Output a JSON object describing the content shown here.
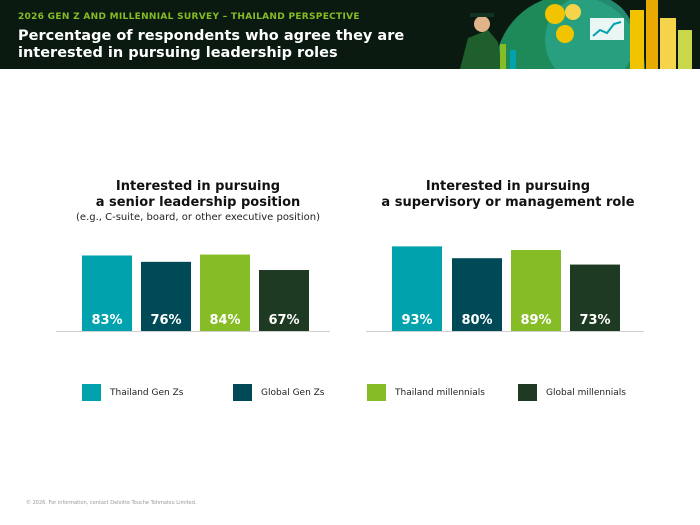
{
  "header": {
    "kicker": "2026 GEN Z AND MILLENNIAL SURVEY – THAILAND PERSPECTIVE",
    "title": "Percentage of respondents who agree they are interested in pursuing leadership roles"
  },
  "colors": {
    "thailand_gen_z": "#00a3ad",
    "global_gen_z": "#004a57",
    "thailand_millennials": "#86bc25",
    "global_millennials": "#1f3a22"
  },
  "legend": [
    {
      "label": "Thailand Gen Zs",
      "color": "#00a3ad"
    },
    {
      "label": "Global Gen Zs",
      "color": "#004a57"
    },
    {
      "label": "Thailand millennials",
      "color": "#86bc25"
    },
    {
      "label": "Global millennials",
      "color": "#1f3a22"
    }
  ],
  "chart_data": [
    {
      "type": "bar",
      "title": "Interested in pursuing a senior leadership position",
      "title_lines": [
        "Interested in pursuing",
        "a senior leadership position"
      ],
      "subtitle": "(e.g., C-suite, board, or other executive position)",
      "categories": [
        "Thailand Gen Zs",
        "Global Gen Zs",
        "Thailand millennials",
        "Global millennials"
      ],
      "values": [
        83,
        76,
        84,
        67
      ],
      "value_labels": [
        "83%",
        "76%",
        "84%",
        "67%"
      ],
      "ylim": [
        0,
        100
      ],
      "grid": false
    },
    {
      "type": "bar",
      "title": "Interested in pursuing a supervisory or management role",
      "title_lines": [
        "Interested in pursuing",
        "a supervisory or management role"
      ],
      "subtitle": "",
      "categories": [
        "Thailand Gen Zs",
        "Global Gen Zs",
        "Thailand millennials",
        "Global millennials"
      ],
      "values": [
        93,
        80,
        89,
        73
      ],
      "value_labels": [
        "93%",
        "80%",
        "89%",
        "73%"
      ],
      "ylim": [
        0,
        100
      ],
      "grid": false
    }
  ],
  "footer": "© 2026. For information, contact Deloitte Touche Tohmatsu Limited."
}
